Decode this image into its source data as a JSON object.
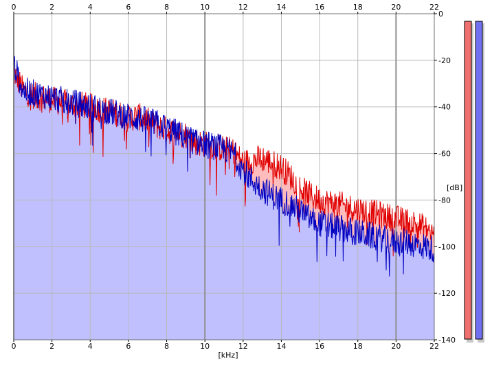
{
  "chart_data": {
    "type": "area",
    "xlabel": "[kHz]",
    "ylabel": "[dB]",
    "xlim": [
      0,
      22
    ],
    "ylim": [
      -140,
      0
    ],
    "x_ticks": [
      {
        "value": 0,
        "label": "0"
      },
      {
        "value": 2,
        "label": "2"
      },
      {
        "value": 4,
        "label": "4"
      },
      {
        "value": 6,
        "label": "6"
      },
      {
        "value": 8,
        "label": "8"
      },
      {
        "value": 10,
        "label": "10"
      },
      {
        "value": 12,
        "label": "12"
      },
      {
        "value": 14,
        "label": "14"
      },
      {
        "value": 16,
        "label": "16"
      },
      {
        "value": 18,
        "label": "18"
      },
      {
        "value": 20,
        "label": "20"
      },
      {
        "value": 22,
        "label": "22"
      }
    ],
    "y_ticks": [
      {
        "value": 0,
        "label": "0"
      },
      {
        "value": -20,
        "label": "-20"
      },
      {
        "value": -40,
        "label": "-40"
      },
      {
        "value": -60,
        "label": "-60"
      },
      {
        "value": -80,
        "label": "-80"
      },
      {
        "value": -100,
        "label": "-100"
      },
      {
        "value": -120,
        "label": "-120"
      },
      {
        "value": -140,
        "label": "-140"
      }
    ],
    "grid": true,
    "x_axis_labels_top_and_bottom": true,
    "y_axis_position": "right",
    "series": [
      {
        "color": "#e00000",
        "fill": "#ffbcbc",
        "x": [
          0,
          0.5,
          1,
          1.5,
          2,
          2.5,
          3,
          3.5,
          4,
          4.5,
          5,
          5.5,
          6,
          6.5,
          7,
          7.5,
          8,
          8.5,
          9,
          9.5,
          10,
          10.5,
          11,
          11.5,
          12,
          12.5,
          13,
          13.5,
          14,
          14.5,
          15,
          15.5,
          16,
          16.5,
          17,
          17.5,
          18,
          18.5,
          19,
          19.5,
          20,
          20.5,
          21,
          21.5,
          22
        ],
        "values": [
          -25,
          -33,
          -35,
          -36,
          -37,
          -38,
          -39,
          -39,
          -40,
          -41,
          -42,
          -43,
          -45,
          -44,
          -46,
          -48,
          -50,
          -51,
          -52,
          -55,
          -56,
          -57,
          -58,
          -59,
          -64,
          -63,
          -62,
          -64,
          -66,
          -70,
          -75,
          -78,
          -80,
          -81,
          -82,
          -83,
          -84,
          -85,
          -86,
          -87,
          -88,
          -89,
          -90,
          -92,
          -95
        ]
      },
      {
        "color": "#0000c0",
        "fill": "#c0c0ff",
        "x": [
          0,
          0.5,
          1,
          1.5,
          2,
          2.5,
          3,
          3.5,
          4,
          4.5,
          5,
          5.5,
          6,
          6.5,
          7,
          7.5,
          8,
          8.5,
          9,
          9.5,
          10,
          10.5,
          11,
          11.5,
          12,
          12.5,
          13,
          13.5,
          14,
          14.5,
          15,
          15.5,
          16,
          16.5,
          17,
          17.5,
          18,
          18.5,
          19,
          19.5,
          20,
          20.5,
          21,
          21.5,
          22
        ],
        "values": [
          -22,
          -33,
          -34,
          -35,
          -36,
          -37,
          -38,
          -39,
          -40,
          -41,
          -42,
          -43,
          -44,
          -45,
          -46,
          -47,
          -49,
          -51,
          -53,
          -55,
          -56,
          -57,
          -58,
          -60,
          -67,
          -72,
          -75,
          -78,
          -80,
          -82,
          -85,
          -88,
          -90,
          -91,
          -92,
          -93,
          -94,
          -95,
          -96,
          -97,
          -98,
          -98,
          -99,
          -100,
          -101
        ]
      }
    ],
    "level_meters": [
      {
        "fill_fraction": 0,
        "color": "#f07070"
      },
      {
        "fill_fraction": 0,
        "color": "#7070f0"
      }
    ]
  }
}
